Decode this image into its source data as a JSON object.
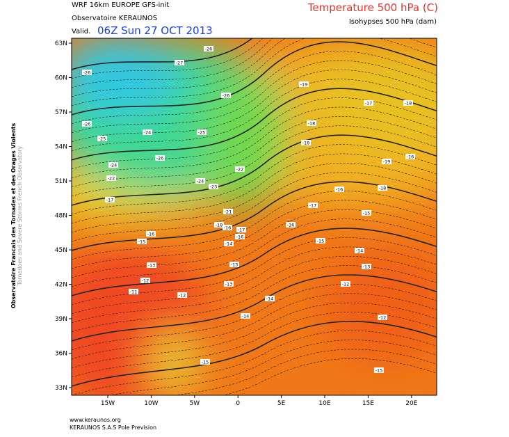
{
  "header": {
    "model": "WRF 16km EUROPE  GFS-init",
    "source": "Observatoire KERAUNOS",
    "valid_prefix": "Valid.",
    "valid_time": "06Z Sun 27 OCT 2013",
    "field": "Temperature 500 hPa (C)",
    "contours": "Isohypses 500 hPa (dam)"
  },
  "side": {
    "line1": "Observatoire Francais des Tornades et des Orages Violents",
    "line2": "Tornadoes and Severe Storms French Observatory"
  },
  "map": {
    "lat_labels": [
      "63N",
      "60N",
      "57N",
      "54N",
      "51N",
      "48N",
      "45N",
      "42N",
      "39N",
      "36N",
      "33N"
    ],
    "lon_labels": [
      "15W",
      "10W",
      "5W",
      "0",
      "5E",
      "10E",
      "15E",
      "20E"
    ],
    "contour_labels": [
      "-26",
      "-27",
      "-26",
      "-26",
      "-19",
      "-17",
      "-18",
      "-26",
      "-24",
      "-25",
      "-18",
      "-25",
      "-18",
      "-26",
      "-16",
      "-19",
      "-24",
      "-22",
      "-22",
      "-24",
      "-23",
      "-16",
      "-18",
      "-17",
      "-17",
      "-21",
      "-15",
      "-18",
      "-16",
      "-17",
      "-16",
      "-16",
      "-15",
      "-16",
      "-14",
      "-15",
      "-14",
      "-13",
      "-13",
      "-13",
      "-12",
      "-13",
      "-12",
      "-11",
      "-12",
      "-14",
      "-14",
      "-12",
      "-15",
      "-15"
    ]
  },
  "footer": {
    "url": "www.keraunos.org",
    "company": "KERAUNOS S.A.S Pole Prevision"
  }
}
